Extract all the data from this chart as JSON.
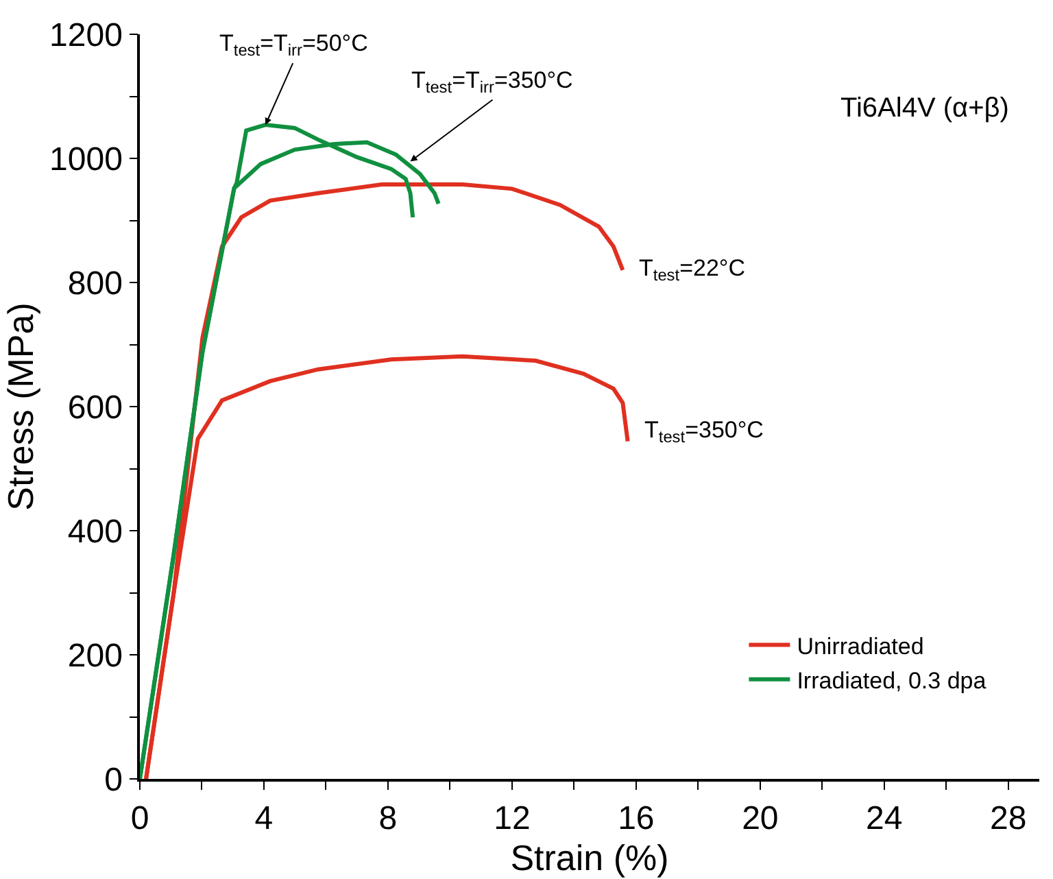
{
  "chart_data": {
    "type": "line",
    "xlabel": "Strain (%)",
    "ylabel": "Stress (MPa)",
    "xlim": [
      0,
      29
    ],
    "ylim": [
      0,
      1200
    ],
    "xticks": [
      0,
      {
        "value": 2,
        "label": null
      },
      4,
      {
        "value": 6,
        "label": null
      },
      8,
      {
        "value": 10,
        "label": null
      },
      12,
      {
        "value": 14,
        "label": null
      },
      16,
      {
        "value": 18,
        "label": null
      },
      20,
      {
        "value": 22,
        "label": null
      },
      24,
      {
        "value": 26,
        "label": null
      },
      28
    ],
    "yticks": [
      0,
      {
        "value": 100,
        "label": null
      },
      200,
      {
        "value": 300,
        "label": null
      },
      400,
      {
        "value": 500,
        "label": null
      },
      600,
      {
        "value": 700,
        "label": null
      },
      800,
      {
        "value": 900,
        "label": null
      },
      1000,
      {
        "value": 1100,
        "label": null
      },
      1200
    ],
    "grid": false,
    "legend": "bottom right",
    "marker": "none",
    "line_style": "solid",
    "series": [
      {
        "name": "Unirradiated",
        "color": "#e03020",
        "x": [
          0.2,
          1.09,
          2.02,
          2.65,
          3.27,
          4.2,
          5.75,
          7.8,
          10.4,
          12.0,
          13.55,
          14.8,
          15.27,
          15.57
        ],
        "values": [
          0,
          299,
          711,
          858,
          905,
          932,
          944,
          958,
          958,
          951,
          925,
          890,
          858,
          820
        ]
      },
      {
        "name": null,
        "color": "#e03020",
        "x": [
          0.2,
          1.09,
          1.87,
          2.65,
          4.2,
          5.75,
          8.1,
          10.4,
          12.76,
          14.3,
          15.27,
          15.57,
          15.73
        ],
        "values": [
          0,
          299,
          548,
          610,
          641,
          660,
          676,
          681,
          674,
          653,
          629,
          606,
          544
        ]
      },
      {
        "name": "Irradiated, 0.3 dpa",
        "color": "#109040",
        "x": [
          0,
          1.09,
          2.02,
          3.04,
          3.12,
          3.43,
          4.05,
          4.99,
          5.76,
          7.0,
          8.1,
          8.57,
          8.72,
          8.8
        ],
        "values": [
          0,
          361,
          688,
          952,
          960,
          1045,
          1054,
          1049,
          1030,
          1002,
          983,
          967,
          944,
          905
        ]
      },
      {
        "name": null,
        "color": "#109040",
        "x": [
          0,
          1.09,
          2.02,
          3.04,
          3.9,
          4.99,
          6.23,
          7.32,
          8.26,
          9.03,
          9.5,
          9.63
        ],
        "values": [
          0,
          361,
          688,
          952,
          991,
          1014,
          1023,
          1026,
          1006,
          975,
          944,
          927
        ]
      }
    ],
    "annotations": [
      {
        "text": "T$_{test}$=T$_{irr}$=50°C",
        "x": 4.05,
        "y": 1054
      },
      {
        "text": "T$_{test}$=T$_{irr}$=350°C",
        "x": 8.72,
        "y": 995
      },
      {
        "text": "T$_{test}$=22°C",
        "x": 15.57,
        "y": 820
      },
      {
        "text": "T$_{test}$=350°C",
        "x": 15.73,
        "y": 560
      },
      "Ti6Al4V (α+β)"
    ]
  }
}
